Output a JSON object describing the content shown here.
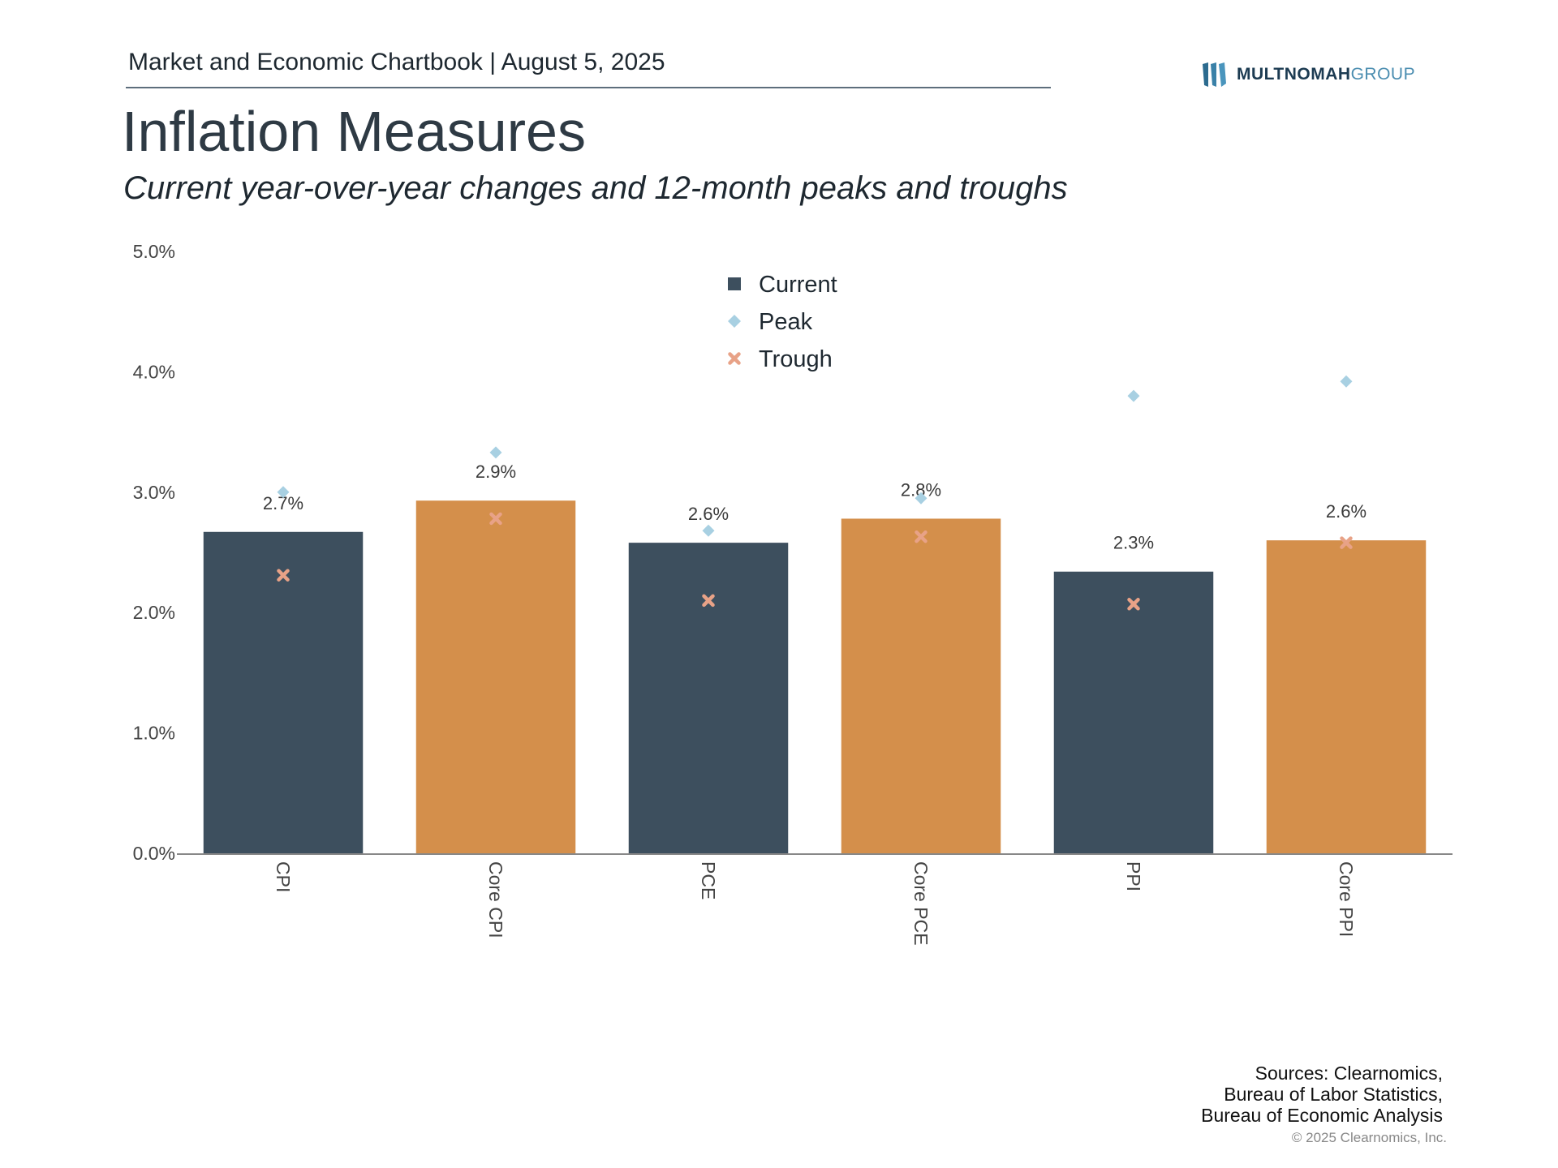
{
  "header": {
    "report_title": "Market and Economic Chartbook | August 5, 2025",
    "logo_text_bold": "MULTNOMAH",
    "logo_text_light": "GROUP"
  },
  "title": "Inflation Measures",
  "subtitle": "Current year-over-year changes and 12-month peaks and troughs",
  "colors": {
    "dark_bar": "#3d4f5e",
    "orange_bar": "#d48f4b",
    "peak": "#a8d0e2",
    "trough": "#e8a287"
  },
  "chart_data": {
    "type": "bar",
    "categories": [
      "CPI",
      "Core CPI",
      "PCE",
      "Core PCE",
      "PPI",
      "Core PPI"
    ],
    "series": [
      {
        "name": "Current",
        "values": [
          2.67,
          2.93,
          2.58,
          2.78,
          2.34,
          2.6
        ]
      },
      {
        "name": "Peak",
        "values": [
          3.0,
          3.33,
          2.68,
          2.95,
          3.8,
          3.92
        ]
      },
      {
        "name": "Trough",
        "values": [
          2.31,
          2.78,
          2.1,
          2.63,
          2.07,
          2.58
        ]
      }
    ],
    "data_labels": [
      "2.7%",
      "2.9%",
      "2.6%",
      "2.8%",
      "2.3%",
      "2.6%"
    ],
    "bar_colors": [
      "dark",
      "orange",
      "dark",
      "orange",
      "dark",
      "orange"
    ],
    "y_ticks": [
      "0.0%",
      "1.0%",
      "2.0%",
      "3.0%",
      "4.0%",
      "5.0%"
    ],
    "ylim": [
      0,
      5
    ],
    "grid": false,
    "legend_position": "top-center"
  },
  "sources": [
    "Sources: Clearnomics,",
    "Bureau of Labor Statistics,",
    "Bureau of Economic Analysis"
  ],
  "copyright": "© 2025 Clearnomics, Inc."
}
